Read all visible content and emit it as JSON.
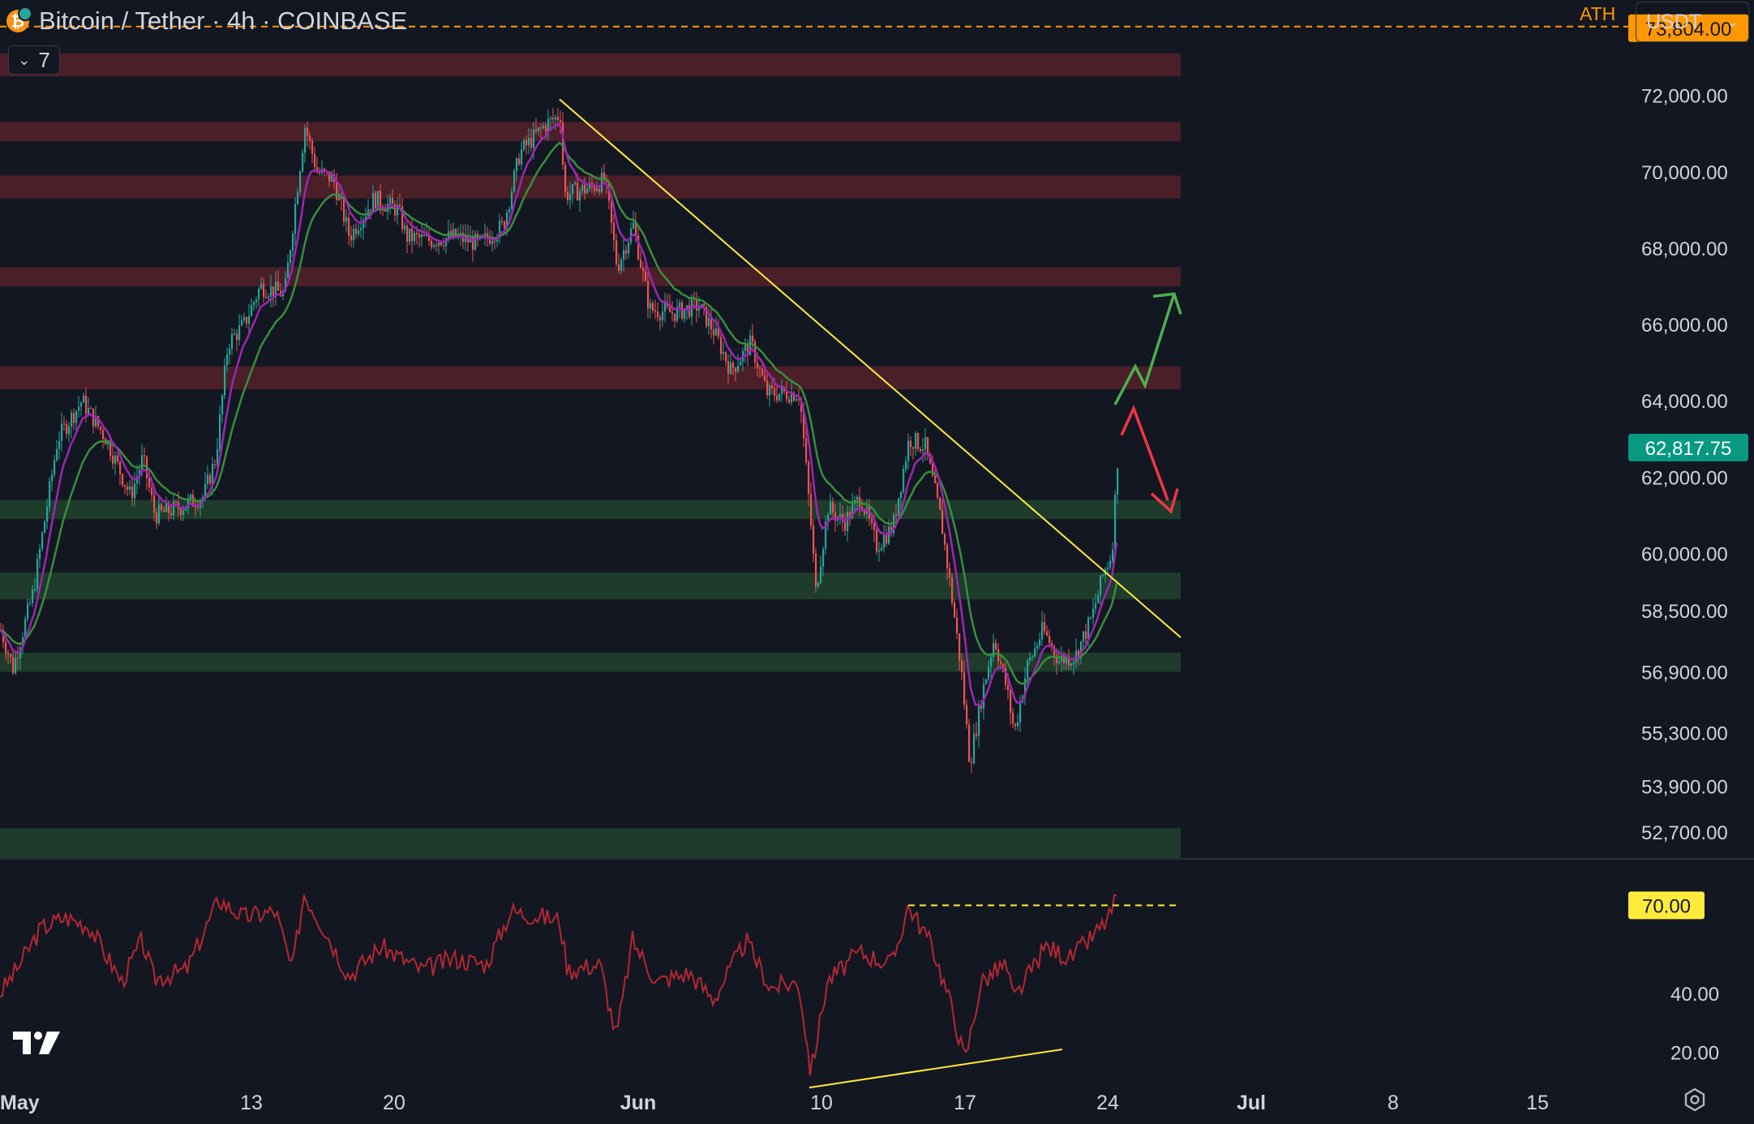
{
  "header": {
    "title": "Bitcoin / Tether · 4h · COINBASE",
    "indicator_count": "7",
    "currency": "USDT",
    "symbol_icon": "bitcoin-icon"
  },
  "colors": {
    "background": "#131722",
    "up_candle": "#26a69a",
    "down_candle": "#ef5350",
    "resistance_zone": "#4a1f28",
    "support_zone": "#1e3b2b",
    "trendline": "#ffeb3b",
    "ath_line": "#ff9800",
    "ema_fast": "#9c27b0",
    "ema_slow": "#388e3c",
    "rsi_line": "#b22833",
    "last_price_bg": "#089981"
  },
  "chart_data": [
    {
      "type": "candlestick",
      "timeframe": "4h",
      "x_tick_labels": [
        "May",
        "13",
        "20",
        "Jun",
        "10",
        "17",
        "24",
        "Jul",
        "8",
        "15"
      ],
      "y_tick_labels": [
        "72,000.00",
        "70,000.00",
        "68,000.00",
        "66,000.00",
        "64,000.00",
        "62,000.00",
        "60,000.00",
        "58,500.00",
        "56,900.00",
        "55,300.00",
        "53,900.00",
        "52,700.00"
      ],
      "ylim": [
        52000,
        74500
      ],
      "ath": {
        "label": "ATH",
        "value": "73,804.00"
      },
      "last_price": "62,817.75",
      "resistance_zones": [
        [
          72500,
          73100
        ],
        [
          70800,
          71300
        ],
        [
          69300,
          69900
        ],
        [
          67000,
          67500
        ],
        [
          64300,
          64900
        ]
      ],
      "support_zones": [
        [
          60900,
          61400
        ],
        [
          58800,
          59500
        ],
        [
          56900,
          57400
        ],
        [
          52000,
          52800
        ]
      ],
      "close_path": [
        {
          "x": 0,
          "y": 58000
        },
        {
          "x": 15,
          "y": 57000
        },
        {
          "x": 40,
          "y": 59000
        },
        {
          "x": 70,
          "y": 63000
        },
        {
          "x": 100,
          "y": 64000
        },
        {
          "x": 130,
          "y": 63000
        },
        {
          "x": 160,
          "y": 61500
        },
        {
          "x": 175,
          "y": 62500
        },
        {
          "x": 190,
          "y": 61000
        },
        {
          "x": 220,
          "y": 61200
        },
        {
          "x": 250,
          "y": 61500
        },
        {
          "x": 265,
          "y": 62500
        },
        {
          "x": 280,
          "y": 65500
        },
        {
          "x": 300,
          "y": 66000
        },
        {
          "x": 320,
          "y": 67000
        },
        {
          "x": 350,
          "y": 66800
        },
        {
          "x": 365,
          "y": 69500
        },
        {
          "x": 375,
          "y": 71200
        },
        {
          "x": 390,
          "y": 70000
        },
        {
          "x": 410,
          "y": 69800
        },
        {
          "x": 430,
          "y": 68300
        },
        {
          "x": 460,
          "y": 69300
        },
        {
          "x": 490,
          "y": 69000
        },
        {
          "x": 500,
          "y": 68300
        },
        {
          "x": 530,
          "y": 68200
        },
        {
          "x": 560,
          "y": 68300
        },
        {
          "x": 590,
          "y": 68100
        },
        {
          "x": 620,
          "y": 68600
        },
        {
          "x": 640,
          "y": 70500
        },
        {
          "x": 670,
          "y": 71200
        },
        {
          "x": 690,
          "y": 71500
        },
        {
          "x": 695,
          "y": 69400
        },
        {
          "x": 730,
          "y": 69600
        },
        {
          "x": 745,
          "y": 69800
        },
        {
          "x": 760,
          "y": 67500
        },
        {
          "x": 780,
          "y": 68600
        },
        {
          "x": 800,
          "y": 66400
        },
        {
          "x": 830,
          "y": 66300
        },
        {
          "x": 860,
          "y": 66500
        },
        {
          "x": 880,
          "y": 65800
        },
        {
          "x": 900,
          "y": 64800
        },
        {
          "x": 925,
          "y": 65500
        },
        {
          "x": 945,
          "y": 64200
        },
        {
          "x": 985,
          "y": 64200
        },
        {
          "x": 1000,
          "y": 60500
        },
        {
          "x": 1005,
          "y": 59000
        },
        {
          "x": 1020,
          "y": 61200
        },
        {
          "x": 1040,
          "y": 60800
        },
        {
          "x": 1060,
          "y": 61500
        },
        {
          "x": 1080,
          "y": 60200
        },
        {
          "x": 1100,
          "y": 60700
        },
        {
          "x": 1120,
          "y": 63000
        },
        {
          "x": 1140,
          "y": 62800
        },
        {
          "x": 1160,
          "y": 60800
        },
        {
          "x": 1175,
          "y": 58500
        },
        {
          "x": 1185,
          "y": 56800
        },
        {
          "x": 1195,
          "y": 54500
        },
        {
          "x": 1210,
          "y": 56300
        },
        {
          "x": 1225,
          "y": 57800
        },
        {
          "x": 1240,
          "y": 56500
        },
        {
          "x": 1250,
          "y": 55300
        },
        {
          "x": 1265,
          "y": 57000
        },
        {
          "x": 1285,
          "y": 58000
        },
        {
          "x": 1305,
          "y": 57200
        },
        {
          "x": 1325,
          "y": 57300
        },
        {
          "x": 1345,
          "y": 58300
        },
        {
          "x": 1360,
          "y": 59500
        },
        {
          "x": 1370,
          "y": 60000
        },
        {
          "x": 1378,
          "y": 62800
        }
      ],
      "trendline": [
        {
          "x": 690,
          "y": 71900
        },
        {
          "x": 1456,
          "y": 57800
        }
      ],
      "projection_bullish": [
        {
          "x": 1375,
          "y": 63900
        },
        {
          "x": 1400,
          "y": 64900
        },
        {
          "x": 1412,
          "y": 64400
        },
        {
          "x": 1448,
          "y": 66800
        }
      ],
      "projection_bearish": [
        {
          "x": 1383,
          "y": 63100
        },
        {
          "x": 1398,
          "y": 63800
        },
        {
          "x": 1440,
          "y": 61400
        }
      ]
    },
    {
      "type": "line",
      "name": "RSI",
      "y_tick_labels": [
        "40.00",
        "20.00"
      ],
      "ylim": [
        5,
        85
      ],
      "level": "70.00",
      "rsi_path": [
        {
          "x": 0,
          "y": 40
        },
        {
          "x": 20,
          "y": 48
        },
        {
          "x": 50,
          "y": 62
        },
        {
          "x": 80,
          "y": 66
        },
        {
          "x": 110,
          "y": 63
        },
        {
          "x": 150,
          "y": 44
        },
        {
          "x": 175,
          "y": 58
        },
        {
          "x": 190,
          "y": 45
        },
        {
          "x": 230,
          "y": 48
        },
        {
          "x": 270,
          "y": 72
        },
        {
          "x": 300,
          "y": 66
        },
        {
          "x": 340,
          "y": 68
        },
        {
          "x": 360,
          "y": 48
        },
        {
          "x": 375,
          "y": 74
        },
        {
          "x": 400,
          "y": 62
        },
        {
          "x": 430,
          "y": 46
        },
        {
          "x": 470,
          "y": 56
        },
        {
          "x": 520,
          "y": 48
        },
        {
          "x": 560,
          "y": 52
        },
        {
          "x": 600,
          "y": 50
        },
        {
          "x": 630,
          "y": 68
        },
        {
          "x": 670,
          "y": 66
        },
        {
          "x": 690,
          "y": 65
        },
        {
          "x": 700,
          "y": 48
        },
        {
          "x": 740,
          "y": 50
        },
        {
          "x": 760,
          "y": 25
        },
        {
          "x": 780,
          "y": 58
        },
        {
          "x": 810,
          "y": 44
        },
        {
          "x": 850,
          "y": 47
        },
        {
          "x": 880,
          "y": 38
        },
        {
          "x": 920,
          "y": 58
        },
        {
          "x": 950,
          "y": 42
        },
        {
          "x": 985,
          "y": 44
        },
        {
          "x": 1000,
          "y": 13
        },
        {
          "x": 1020,
          "y": 44
        },
        {
          "x": 1060,
          "y": 54
        },
        {
          "x": 1100,
          "y": 50
        },
        {
          "x": 1120,
          "y": 70
        },
        {
          "x": 1150,
          "y": 56
        },
        {
          "x": 1175,
          "y": 34
        },
        {
          "x": 1190,
          "y": 17
        },
        {
          "x": 1210,
          "y": 44
        },
        {
          "x": 1240,
          "y": 50
        },
        {
          "x": 1250,
          "y": 38
        },
        {
          "x": 1290,
          "y": 56
        },
        {
          "x": 1320,
          "y": 52
        },
        {
          "x": 1350,
          "y": 60
        },
        {
          "x": 1368,
          "y": 66
        },
        {
          "x": 1378,
          "y": 74
        }
      ],
      "divergence_line": [
        {
          "x": 998,
          "y": 8
        },
        {
          "x": 1310,
          "y": 21
        }
      ],
      "level_line_x": [
        1120,
        1456
      ]
    }
  ],
  "footer": {
    "logo": "tradingview-logo",
    "settings_icon": "settings-icon"
  }
}
